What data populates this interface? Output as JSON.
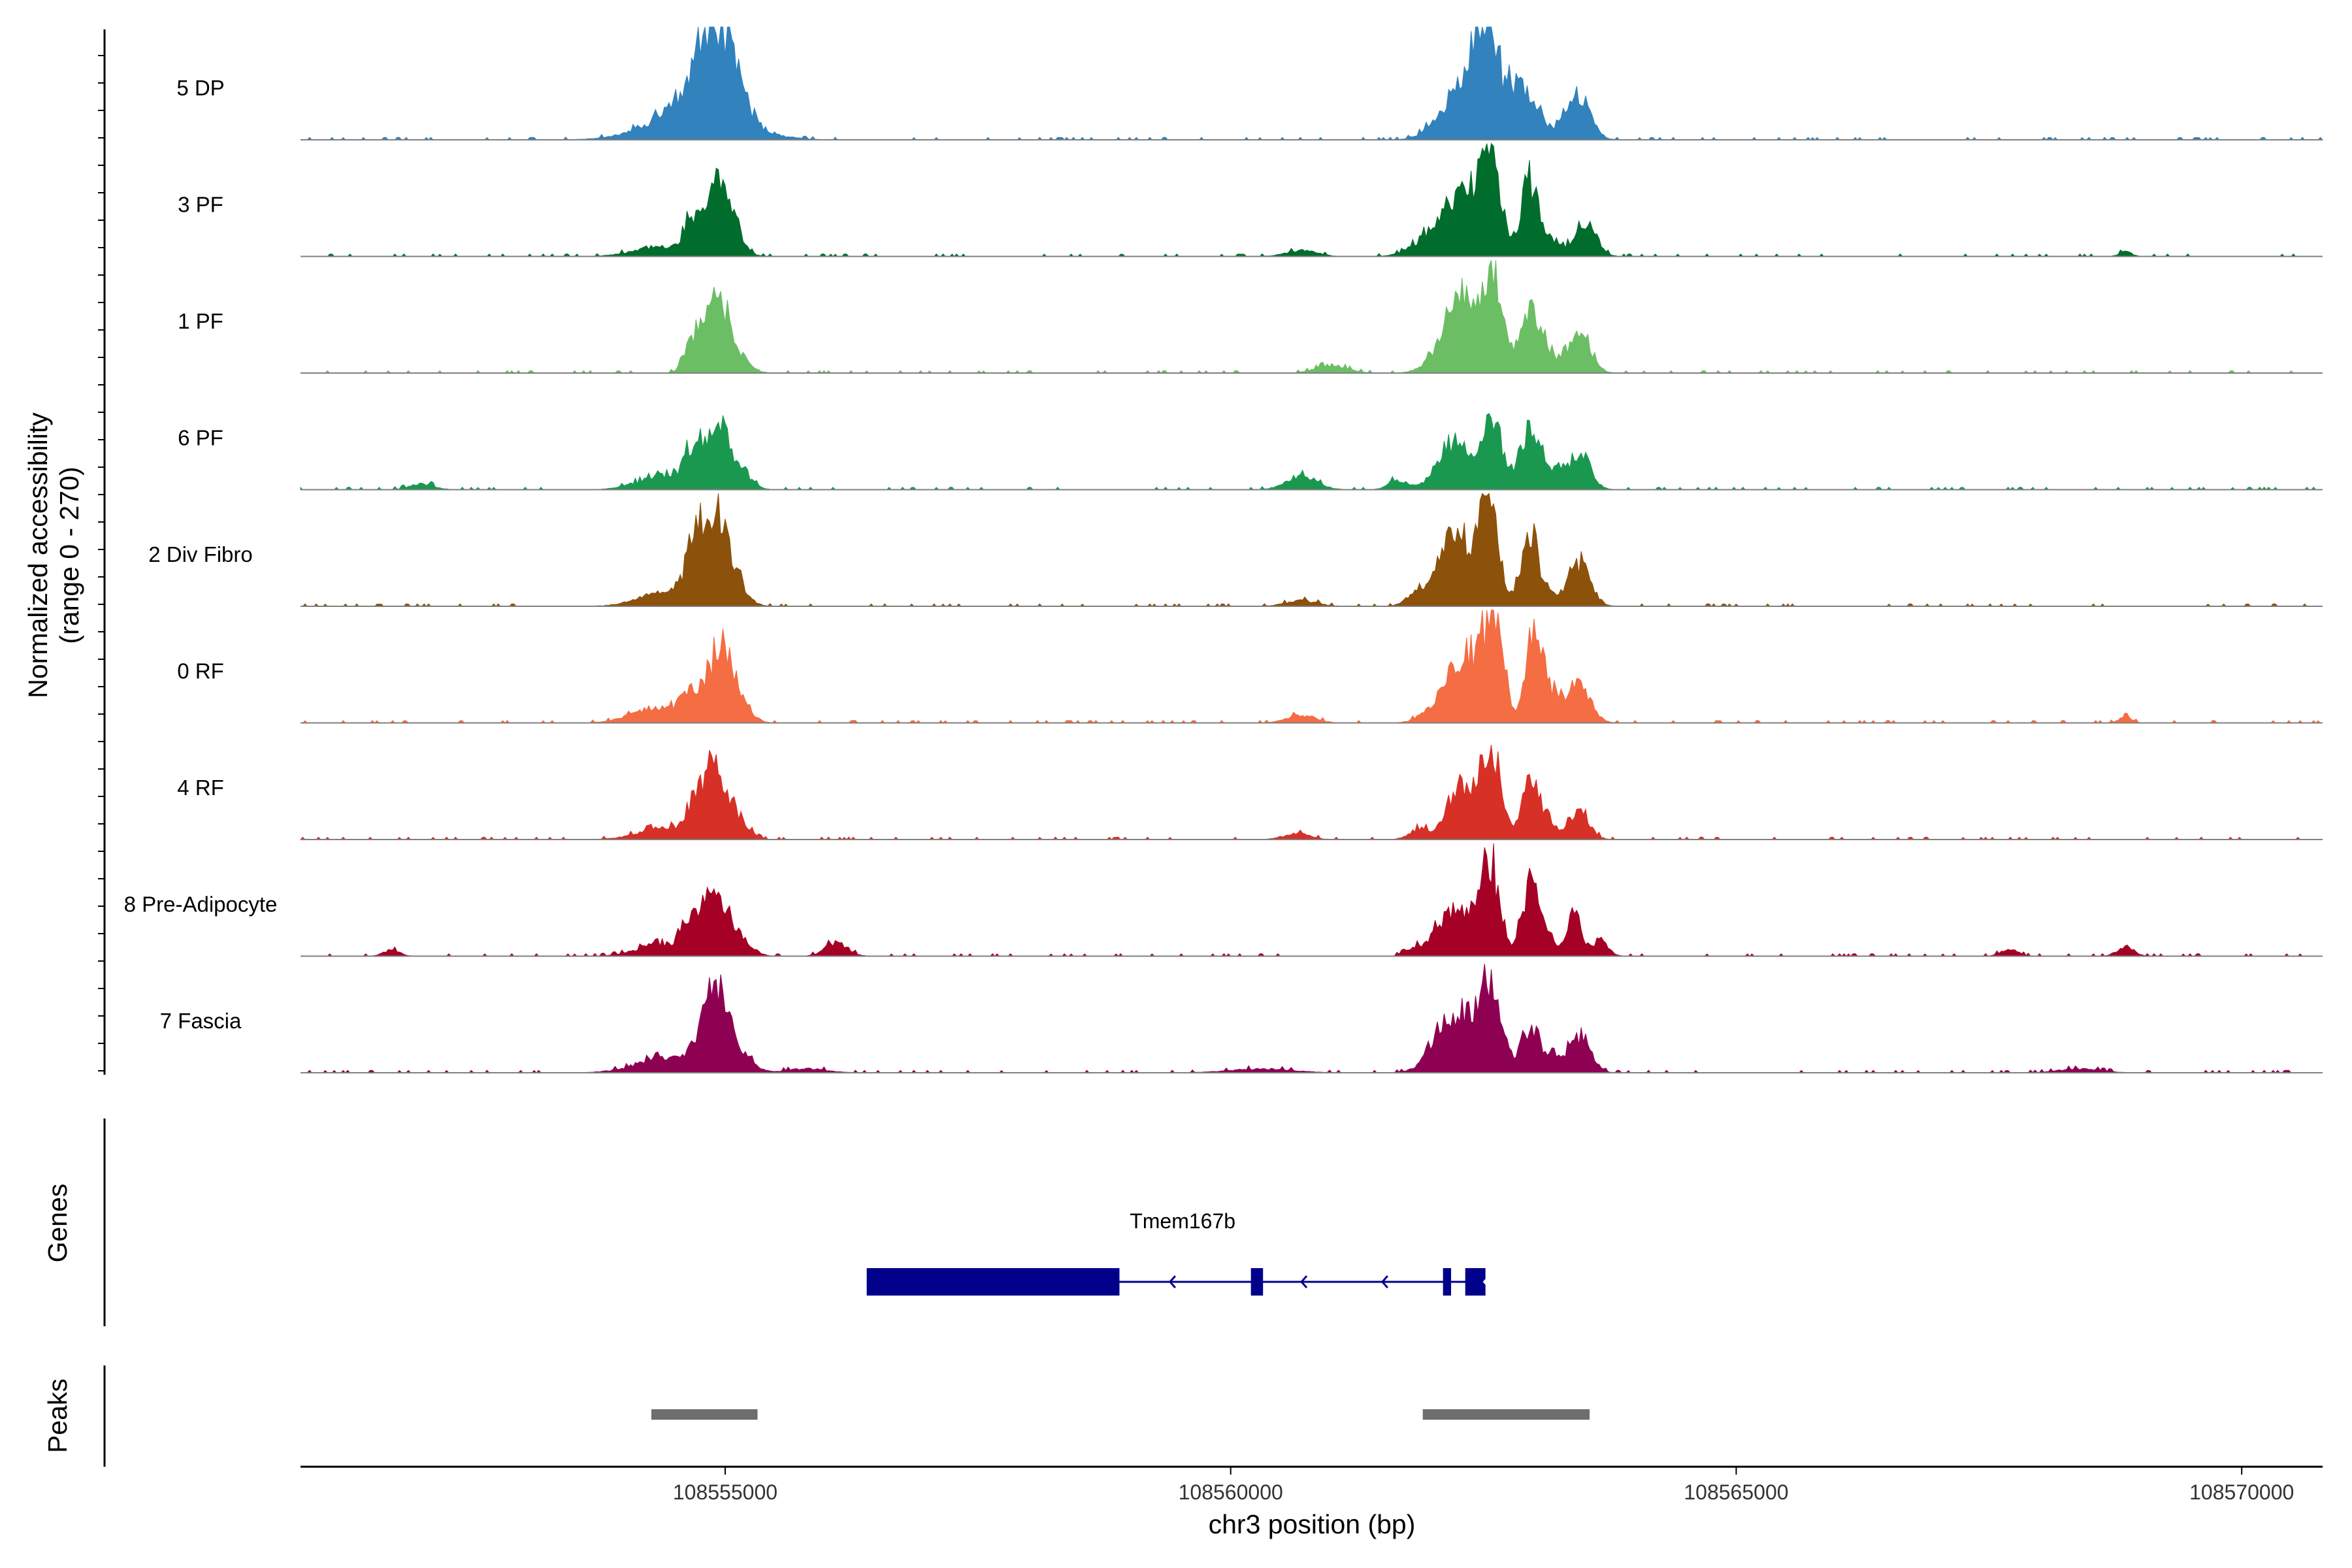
{
  "chart_data": {
    "type": "area",
    "title": "",
    "ylabel_line1": "Normalized accessibility",
    "ylabel_line2": "(range 0 - 270)",
    "ylim": [
      0,
      270
    ],
    "xlabel": "chr3 position (bp)",
    "xlim": [
      108550800,
      108570800
    ],
    "x_ticks": [
      108555000,
      108560000,
      108565000,
      108570000
    ],
    "x_tick_labels": [
      "108555000",
      "108560000",
      "108565000",
      "108570000"
    ],
    "genes_title": "Genes",
    "peaks_title": "Peaks",
    "series": [
      {
        "name": "5 DP",
        "color": "#3182BD",
        "peaks": [
          [
            108554730,
            95,
            400
          ],
          [
            108554900,
            215,
            170
          ],
          [
            108555100,
            30,
            120
          ],
          [
            108562050,
            30,
            150
          ],
          [
            108562350,
            155,
            170
          ],
          [
            108562530,
            245,
            100
          ],
          [
            108562800,
            120,
            110
          ],
          [
            108563000,
            70,
            110
          ],
          [
            108563430,
            115,
            120
          ]
        ]
      },
      {
        "name": "3 PF",
        "color": "#006D2C",
        "peaks": [
          [
            108554350,
            25,
            250
          ],
          [
            108554650,
            50,
            70
          ],
          [
            108554900,
            175,
            140
          ],
          [
            108555050,
            35,
            110
          ],
          [
            108560700,
            15,
            150
          ],
          [
            108562050,
            60,
            200
          ],
          [
            108562300,
            130,
            160
          ],
          [
            108562570,
            220,
            100
          ],
          [
            108562950,
            165,
            80
          ],
          [
            108563100,
            55,
            110
          ],
          [
            108563500,
            75,
            110
          ],
          [
            108568850,
            12,
            60
          ]
        ]
      },
      {
        "name": "1 PF",
        "color": "#6BBE64",
        "peaks": [
          [
            108554650,
            50,
            70
          ],
          [
            108554900,
            205,
            130
          ],
          [
            108555150,
            25,
            110
          ],
          [
            108561000,
            20,
            150
          ],
          [
            108562100,
            40,
            160
          ],
          [
            108562300,
            170,
            150
          ],
          [
            108562600,
            235,
            100
          ],
          [
            108562950,
            130,
            90
          ],
          [
            108563100,
            55,
            110
          ],
          [
            108563450,
            95,
            110
          ]
        ]
      },
      {
        "name": "6 PF",
        "color": "#1A9850",
        "peaks": [
          [
            108554400,
            35,
            250
          ],
          [
            108554650,
            60,
            70
          ],
          [
            108554900,
            155,
            130
          ],
          [
            108555150,
            35,
            110
          ],
          [
            108552000,
            15,
            120
          ],
          [
            108560700,
            35,
            150
          ],
          [
            108561650,
            25,
            90
          ],
          [
            108562200,
            110,
            160
          ],
          [
            108562580,
            175,
            100
          ],
          [
            108562950,
            145,
            90
          ],
          [
            108563150,
            50,
            110
          ],
          [
            108563450,
            80,
            110
          ]
        ]
      },
      {
        "name": "2 Div Fibro",
        "color": "#8C510A",
        "peaks": [
          [
            108554400,
            35,
            250
          ],
          [
            108554700,
            95,
            90
          ],
          [
            108554900,
            215,
            140
          ],
          [
            108555100,
            30,
            120
          ],
          [
            108560700,
            15,
            150
          ],
          [
            108561800,
            20,
            90
          ],
          [
            108562200,
            180,
            170
          ],
          [
            108562550,
            245,
            100
          ],
          [
            108562950,
            165,
            80
          ],
          [
            108563100,
            40,
            110
          ],
          [
            108563450,
            105,
            110
          ]
        ]
      },
      {
        "name": "0 RF",
        "color": "#F46D43",
        "peaks": [
          [
            108554350,
            40,
            250
          ],
          [
            108554650,
            60,
            80
          ],
          [
            108554950,
            180,
            130
          ],
          [
            108555150,
            35,
            110
          ],
          [
            108560700,
            20,
            140
          ],
          [
            108562100,
            55,
            160
          ],
          [
            108562350,
            140,
            150
          ],
          [
            108562600,
            230,
            100
          ],
          [
            108563000,
            200,
            80
          ],
          [
            108563150,
            70,
            110
          ],
          [
            108563450,
            100,
            110
          ],
          [
            108568850,
            15,
            60
          ]
        ]
      },
      {
        "name": "4 RF",
        "color": "#D73027",
        "peaks": [
          [
            108554400,
            30,
            250
          ],
          [
            108554700,
            65,
            80
          ],
          [
            108554900,
            175,
            120
          ],
          [
            108555150,
            35,
            100
          ],
          [
            108560650,
            15,
            130
          ],
          [
            108561850,
            25,
            90
          ],
          [
            108562300,
            125,
            160
          ],
          [
            108562580,
            200,
            100
          ],
          [
            108562950,
            120,
            80
          ],
          [
            108563100,
            50,
            110
          ],
          [
            108563450,
            70,
            100
          ]
        ]
      },
      {
        "name": "8 Pre-Adipocyte",
        "color": "#A50026",
        "peaks": [
          [
            108554350,
            30,
            220
          ],
          [
            108554650,
            55,
            90
          ],
          [
            108554900,
            155,
            140
          ],
          [
            108555200,
            25,
            100
          ],
          [
            108551700,
            15,
            80
          ],
          [
            108556100,
            35,
            110
          ],
          [
            108561800,
            15,
            80
          ],
          [
            108562200,
            115,
            170
          ],
          [
            108562550,
            240,
            100
          ],
          [
            108562950,
            145,
            80
          ],
          [
            108563100,
            60,
            110
          ],
          [
            108563400,
            110,
            60
          ],
          [
            108563650,
            40,
            80
          ],
          [
            108567700,
            20,
            80
          ],
          [
            108568850,
            25,
            80
          ]
        ]
      },
      {
        "name": "7 Fascia",
        "color": "#8E0152",
        "peaks": [
          [
            108554450,
            40,
            300
          ],
          [
            108554900,
            185,
            130
          ],
          [
            108555150,
            40,
            120
          ],
          [
            108555800,
            10,
            200
          ],
          [
            108560300,
            10,
            300
          ],
          [
            108562200,
            145,
            180
          ],
          [
            108562550,
            190,
            120
          ],
          [
            108562950,
            95,
            90
          ],
          [
            108563150,
            40,
            110
          ],
          [
            108563450,
            85,
            110
          ],
          [
            108568400,
            10,
            200
          ]
        ]
      }
    ],
    "genes": [
      {
        "name": "Tmem167b",
        "strand": "-",
        "start": 108556400,
        "end": 108562520,
        "exons": [
          [
            108556400,
            108558900
          ],
          [
            108560200,
            108560320
          ],
          [
            108562100,
            108562180
          ],
          [
            108562320,
            108562520
          ]
        ],
        "arrows": [
          108559400,
          108560700,
          108561500
        ]
      }
    ],
    "peak_regions": [
      [
        108554270,
        108555320
      ],
      [
        108561900,
        108563550
      ]
    ],
    "gene_color": "#00008B",
    "peak_color": "#6E6E6E",
    "baseline_color": "#808080"
  }
}
